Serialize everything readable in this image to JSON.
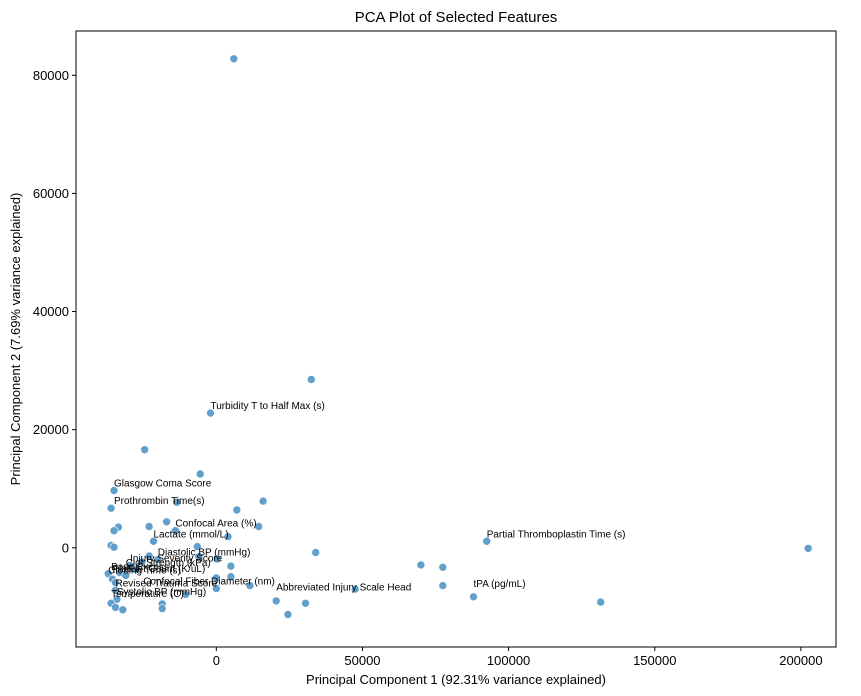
{
  "chart_data": {
    "type": "scatter",
    "title": "PCA Plot of Selected Features",
    "xlabel": "Principal Component 1 (92.31% variance explained)",
    "ylabel": "Principal Component 2 (7.69% variance explained)",
    "xlim": [
      -48000,
      212000
    ],
    "ylim": [
      -16800,
      87500
    ],
    "xticks": [
      0,
      50000,
      100000,
      150000,
      200000
    ],
    "xtick_labels": [
      "0",
      "50000",
      "100000",
      "150000",
      "200000"
    ],
    "yticks": [
      0,
      20000,
      40000,
      60000,
      80000
    ],
    "ytick_labels": [
      "0",
      "20000",
      "40000",
      "60000",
      "80000"
    ],
    "grid": false,
    "color": "#5a9bc9",
    "points": [
      {
        "x": 6000,
        "y": 82800
      },
      {
        "x": 32500,
        "y": 28500
      },
      {
        "x": -2000,
        "y": 22800
      },
      {
        "x": -24500,
        "y": 16600
      },
      {
        "x": -5500,
        "y": 12500
      },
      {
        "x": -35000,
        "y": 9700
      },
      {
        "x": -13500,
        "y": 7700
      },
      {
        "x": 16000,
        "y": 7900
      },
      {
        "x": 7000,
        "y": 6400
      },
      {
        "x": -36000,
        "y": 6700
      },
      {
        "x": -17000,
        "y": 4400
      },
      {
        "x": -23000,
        "y": 3600
      },
      {
        "x": -33500,
        "y": 3500
      },
      {
        "x": 14500,
        "y": 3600
      },
      {
        "x": -35000,
        "y": 2900
      },
      {
        "x": -14000,
        "y": 2900
      },
      {
        "x": 4000,
        "y": 1900
      },
      {
        "x": -21500,
        "y": 1100
      },
      {
        "x": 92500,
        "y": 1100
      },
      {
        "x": -36000,
        "y": 400
      },
      {
        "x": -35000,
        "y": 100
      },
      {
        "x": -6500,
        "y": 200
      },
      {
        "x": 202500,
        "y": -100
      },
      {
        "x": 34000,
        "y": -800
      },
      {
        "x": -23000,
        "y": -1400
      },
      {
        "x": -6000,
        "y": -1500
      },
      {
        "x": -20000,
        "y": -2000
      },
      {
        "x": 300,
        "y": -1900
      },
      {
        "x": -25500,
        "y": -2400
      },
      {
        "x": -29500,
        "y": -3000
      },
      {
        "x": 5000,
        "y": -3100
      },
      {
        "x": 70000,
        "y": -2900
      },
      {
        "x": 77500,
        "y": -3300
      },
      {
        "x": -27500,
        "y": -3700
      },
      {
        "x": -33000,
        "y": -4200
      },
      {
        "x": -37000,
        "y": -4400
      },
      {
        "x": -31000,
        "y": -4700
      },
      {
        "x": -35500,
        "y": -5300
      },
      {
        "x": 0,
        "y": -5100
      },
      {
        "x": 5000,
        "y": -4900
      },
      {
        "x": -34500,
        "y": -5900
      },
      {
        "x": 11500,
        "y": -6400
      },
      {
        "x": 77500,
        "y": -6400
      },
      {
        "x": 0,
        "y": -6900
      },
      {
        "x": 47500,
        "y": -7000
      },
      {
        "x": -34500,
        "y": -7200
      },
      {
        "x": -10500,
        "y": -7900
      },
      {
        "x": 88000,
        "y": -8300
      },
      {
        "x": -34000,
        "y": -8700
      },
      {
        "x": 20500,
        "y": -9000
      },
      {
        "x": -36000,
        "y": -9400
      },
      {
        "x": 30500,
        "y": -9400
      },
      {
        "x": -18500,
        "y": -9500
      },
      {
        "x": 131500,
        "y": -9200
      },
      {
        "x": -34500,
        "y": -10100
      },
      {
        "x": -32000,
        "y": -10500
      },
      {
        "x": -18500,
        "y": -10300
      },
      {
        "x": 24500,
        "y": -11300
      }
    ],
    "annotations": [
      {
        "text": "Turbidity T to Half Max (s)",
        "x": -2000,
        "y": 22800
      },
      {
        "text": "Glasgow Coma Score",
        "x": -35000,
        "y": 9700
      },
      {
        "text": "Prothrombin Time(s)",
        "x": -35000,
        "y": 6700
      },
      {
        "text": "Confocal Area (%)",
        "x": -14000,
        "y": 2900
      },
      {
        "text": "Partial Thromboplastin Time (s)",
        "x": 92500,
        "y": 1100
      },
      {
        "text": "Lactate (mmol/L)",
        "x": -21500,
        "y": 1100
      },
      {
        "text": "Diastolic BP (mmHg)",
        "x": -20000,
        "y": -2000
      },
      {
        "text": "Injury Severity Score",
        "x": -29500,
        "y": -3000
      },
      {
        "text": "Clot Strength (kPa)",
        "x": -31000,
        "y": -3800
      },
      {
        "text": "Base Excess",
        "x": -36000,
        "y": -4400
      },
      {
        "text": "Platelet Count (K/uL)",
        "x": -35500,
        "y": -4800
      },
      {
        "text": "Clotting Time (s)",
        "x": -37000,
        "y": -5000
      },
      {
        "text": "Confocal Fiber Diameter (nm)",
        "x": -25000,
        "y": -6900
      },
      {
        "text": "Revised Trauma Score",
        "x": -34500,
        "y": -7200
      },
      {
        "text": "Abbreviated Injury Scale Head",
        "x": 20500,
        "y": -7900
      },
      {
        "text": "tPA (pg/mL)",
        "x": 88000,
        "y": -7300
      },
      {
        "text": "Systolic BP (mmHg)",
        "x": -34000,
        "y": -8700
      },
      {
        "text": "Temperature (C)",
        "x": -36000,
        "y": -9000
      }
    ]
  }
}
